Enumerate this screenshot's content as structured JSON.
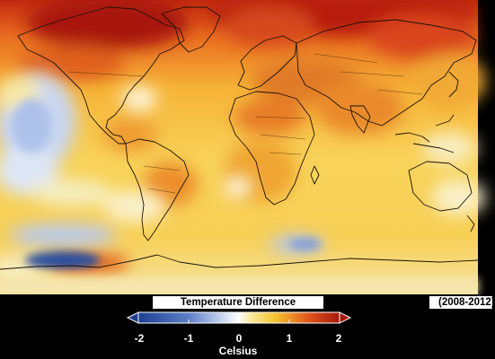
{
  "legend": {
    "title": "Temperature Difference",
    "date_range": "(2008-2012)",
    "unit": "Celsius",
    "ticks": [
      -2,
      -1,
      0,
      1,
      2
    ],
    "range": [
      -2,
      2
    ],
    "colors": {
      "cold_extreme": "#1d3f8f",
      "cool": "#9bb5e6",
      "neutral": "#ffffff",
      "warm": "#f4c430",
      "hot": "#e0531b",
      "hot_extreme": "#a8180f"
    }
  },
  "map": {
    "projection": "equirectangular",
    "coastline_color": "#000000"
  }
}
